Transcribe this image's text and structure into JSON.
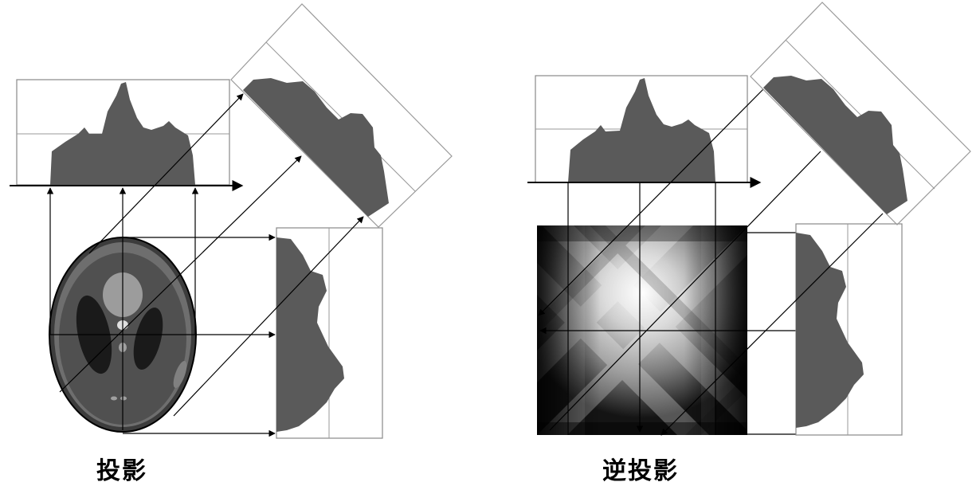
{
  "captions": {
    "projection": "投影",
    "back_projection": "逆投影"
  },
  "colors": {
    "profile_fill": "#5a5a5a",
    "frame": "#888888",
    "arrow": "#000000",
    "phantom_outer": "#3c3c3c",
    "phantom_ring": "#6e6e6e",
    "phantom_body": "#555555",
    "phantom_dark": "#1a1a1a",
    "phantom_light": "#a0a0a0"
  }
}
